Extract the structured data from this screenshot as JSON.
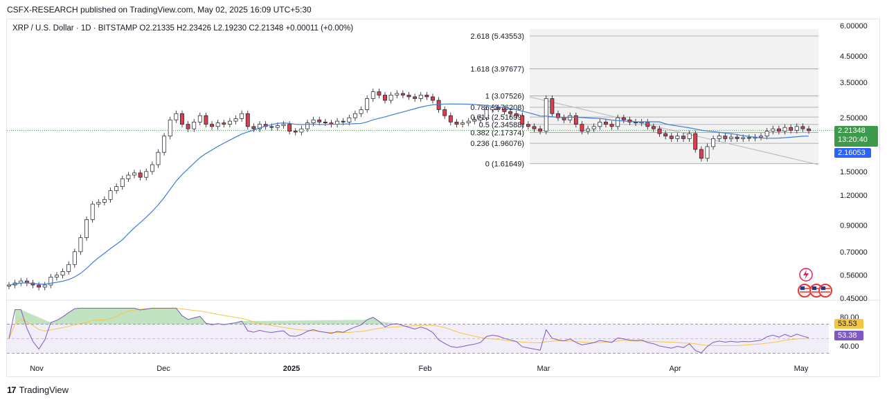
{
  "publisher": "CSFX-RESEARCH published on TradingView.com, May 02, 2025 16:09 UTC+5:30",
  "symbol": {
    "name": "XRP / U.S. Dollar · 1D · BITSTAMP",
    "open": "O2.21335",
    "high": "H2.23426",
    "low": "L2.19230",
    "close": "C2.21348",
    "change": "+0.00011 (+0.00%)"
  },
  "branding": "TradingView",
  "colors": {
    "up": "#089981",
    "down": "#f23645",
    "candle_up_body": "#ffffff",
    "candle_up_border": "#131722",
    "candle_down_body": "#d6404f",
    "ma": "#3d7bd9",
    "rsi": "#7e57c2",
    "rsi_ma": "#f5c542",
    "fib_zone": "#f2f2f2",
    "price_tag_green": "#3d9a4a",
    "price_tag_blue": "#2962ff"
  },
  "price_tags": {
    "last": "2.21348",
    "countdown": "13:20:40",
    "ma": "2.16053",
    "rsi_ma": "53.53",
    "rsi": "53.38"
  },
  "chart_data": {
    "type": "candlestick",
    "price_axis": {
      "scale": "log",
      "ticks": [
        "6.00000",
        "4.50000",
        "3.50000",
        "2.50000",
        "2.00000",
        "1.50000",
        "1.20000",
        "0.90000",
        "0.70000",
        "0.56000",
        "0.45000"
      ]
    },
    "time_axis": {
      "ticks": [
        "Nov",
        "Dec",
        "2025",
        "Feb",
        "Mar",
        "Apr",
        "May"
      ]
    },
    "fib_levels": [
      {
        "label": "2.618 (5.43553)",
        "value": 5.43553
      },
      {
        "label": "1.618 (3.97677)",
        "value": 3.97677
      },
      {
        "label": "1 (3.07526)",
        "value": 3.07526
      },
      {
        "label": "0.786 (2.76208)",
        "value": 2.76208
      },
      {
        "label": "0.618 (2.51699)",
        "value": 2.51699
      },
      {
        "label": "0.5 (2.34588)",
        "value": 2.34588
      },
      {
        "label": "0.382 (2.17374)",
        "value": 2.17374
      },
      {
        "label": "0.236 (1.96076)",
        "value": 1.96076
      },
      {
        "label": "0 (1.61649)",
        "value": 1.61649
      }
    ],
    "close_series": [
      0.51,
      0.52,
      0.53,
      0.52,
      0.51,
      0.5,
      0.51,
      0.55,
      0.56,
      0.58,
      0.62,
      0.7,
      0.8,
      0.95,
      1.1,
      1.12,
      1.15,
      1.25,
      1.3,
      1.4,
      1.45,
      1.48,
      1.42,
      1.5,
      1.6,
      1.8,
      2.1,
      2.45,
      2.6,
      2.35,
      2.25,
      2.4,
      2.55,
      2.35,
      2.3,
      2.38,
      2.35,
      2.42,
      2.48,
      2.6,
      2.3,
      2.25,
      2.35,
      2.3,
      2.28,
      2.32,
      2.35,
      2.2,
      2.18,
      2.25,
      2.38,
      2.45,
      2.4,
      2.38,
      2.35,
      2.42,
      2.4,
      2.5,
      2.6,
      2.7,
      3.0,
      3.2,
      3.1,
      2.95,
      3.1,
      3.15,
      3.1,
      3.05,
      3.0,
      3.1,
      3.05,
      2.95,
      2.7,
      2.55,
      2.4,
      2.35,
      2.38,
      2.42,
      2.45,
      2.5,
      2.7,
      2.75,
      2.72,
      2.65,
      2.6,
      2.55,
      2.35,
      2.3,
      2.25,
      2.2,
      3.0,
      2.6,
      2.5,
      2.45,
      2.55,
      2.35,
      2.2,
      2.25,
      2.3,
      2.4,
      2.35,
      2.3,
      2.5,
      2.45,
      2.4,
      2.38,
      2.4,
      2.3,
      2.25,
      2.15,
      2.1,
      2.05,
      2.1,
      2.05,
      2.15,
      1.85,
      1.7,
      1.9,
      2.05,
      2.1,
      2.05,
      2.08,
      2.05,
      2.07,
      2.06,
      2.08,
      2.1,
      2.2,
      2.25,
      2.2,
      2.28,
      2.22,
      2.3,
      2.25,
      2.21
    ],
    "rsi_axis": {
      "ticks": [
        "80.00",
        "40.00"
      ]
    }
  }
}
